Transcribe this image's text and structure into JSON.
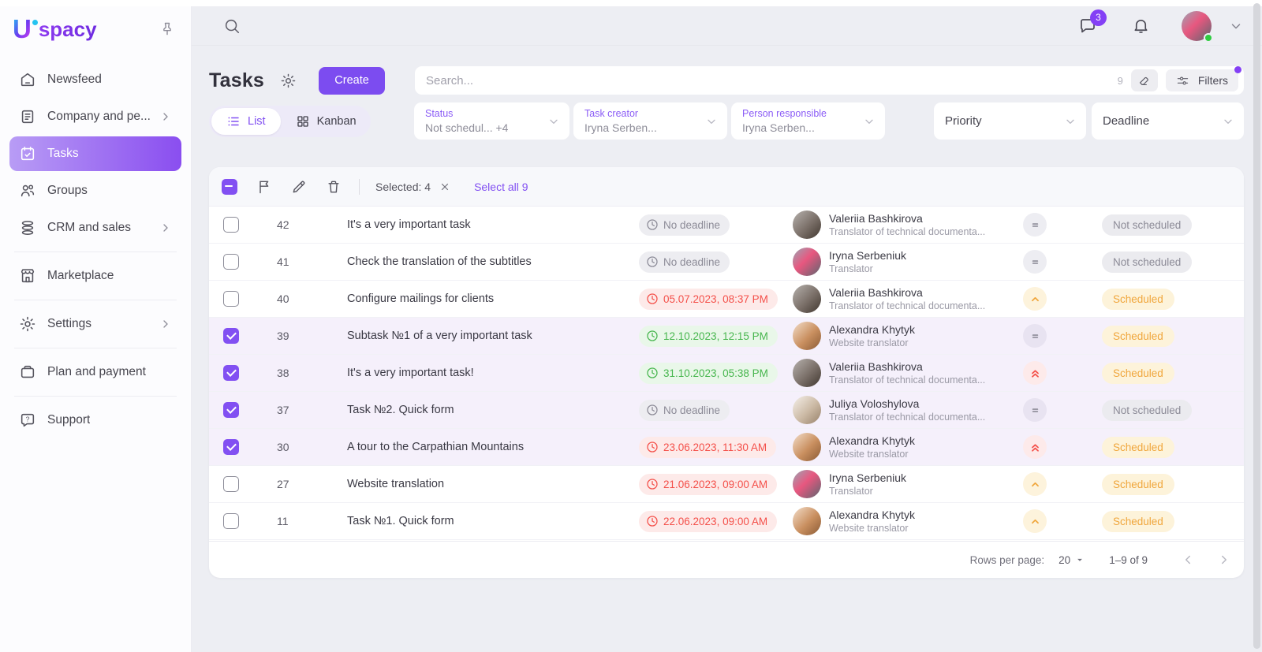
{
  "sidebar": {
    "logo_text": "spacy",
    "items": [
      {
        "label": "Newsfeed",
        "icon": "newsfeed"
      },
      {
        "label": "Company and pe...",
        "icon": "company",
        "chevron": true
      },
      {
        "label": "Tasks",
        "icon": "tasks",
        "active": true
      },
      {
        "label": "Groups",
        "icon": "groups"
      },
      {
        "label": "CRM and sales",
        "icon": "crm",
        "chevron": true,
        "divider_after": true
      },
      {
        "label": "Marketplace",
        "icon": "marketplace",
        "divider_after": true
      },
      {
        "label": "Settings",
        "icon": "settings",
        "chevron": true,
        "divider_after": true
      },
      {
        "label": "Plan and payment",
        "icon": "plan",
        "divider_after": true
      },
      {
        "label": "Support",
        "icon": "support"
      }
    ]
  },
  "topbar": {
    "chat_badge": "3"
  },
  "header": {
    "title": "Tasks",
    "create_label": "Create"
  },
  "search": {
    "placeholder": "Search...",
    "count": "9",
    "filters_label": "Filters"
  },
  "view_toggle": {
    "list_label": "List",
    "kanban_label": "Kanban"
  },
  "filters": [
    {
      "label": "Status",
      "value": "Not schedul...  +4"
    },
    {
      "label": "Task creator",
      "value": "Iryna Serben..."
    },
    {
      "label": "Person responsible",
      "value": "Iryna Serben..."
    },
    {
      "label": "Priority"
    },
    {
      "label": "Deadline"
    }
  ],
  "toolbar": {
    "selected_label": "Selected: 4",
    "select_all_label": "Select all 9"
  },
  "table": {
    "rows": [
      {
        "id": "42",
        "title": "It's a very important task",
        "deadline": {
          "text": "No deadline",
          "tone": "none"
        },
        "person": {
          "name": "Valeriia Bashkirova",
          "role": "Translator of technical documenta...",
          "avatar": "valeriia"
        },
        "priority": "medium",
        "status": {
          "text": "Not scheduled",
          "tone": "gray"
        },
        "selected": false
      },
      {
        "id": "41",
        "title": "Check the translation of the subtitles",
        "deadline": {
          "text": "No deadline",
          "tone": "none"
        },
        "person": {
          "name": "Iryna Serbeniuk",
          "role": "Translator",
          "avatar": "iryna"
        },
        "priority": "medium",
        "status": {
          "text": "Not scheduled",
          "tone": "gray"
        },
        "selected": false
      },
      {
        "id": "40",
        "title": "Configure mailings for clients",
        "deadline": {
          "text": "05.07.2023, 08:37 PM",
          "tone": "overdue"
        },
        "person": {
          "name": "Valeriia Bashkirova",
          "role": "Translator of technical documenta...",
          "avatar": "valeriia"
        },
        "priority": "high",
        "status": {
          "text": "Scheduled",
          "tone": "amber"
        },
        "selected": false
      },
      {
        "id": "39",
        "title": "Subtask №1 of a very important task",
        "deadline": {
          "text": "12.10.2023, 12:15 PM",
          "tone": "upcoming"
        },
        "person": {
          "name": "Alexandra Khytyk",
          "role": "Website translator",
          "avatar": "alexandra"
        },
        "priority": "medium",
        "status": {
          "text": "Scheduled",
          "tone": "amber"
        },
        "selected": true
      },
      {
        "id": "38",
        "title": "It's a very important task!",
        "deadline": {
          "text": "31.10.2023, 05:38 PM",
          "tone": "upcoming"
        },
        "person": {
          "name": "Valeriia Bashkirova",
          "role": "Translator of technical documenta...",
          "avatar": "valeriia"
        },
        "priority": "highest",
        "status": {
          "text": "Scheduled",
          "tone": "amber"
        },
        "selected": true
      },
      {
        "id": "37",
        "title": "Task №2. Quick form",
        "deadline": {
          "text": "No deadline",
          "tone": "none"
        },
        "person": {
          "name": "Juliya Voloshylova",
          "role": "Translator of technical documenta...",
          "avatar": "juliya"
        },
        "priority": "medium",
        "status": {
          "text": "Not scheduled",
          "tone": "gray"
        },
        "selected": true
      },
      {
        "id": "30",
        "title": "A tour to the Carpathian Mountains",
        "deadline": {
          "text": "23.06.2023, 11:30 AM",
          "tone": "overdue"
        },
        "person": {
          "name": "Alexandra Khytyk",
          "role": "Website translator",
          "avatar": "alexandra"
        },
        "priority": "highest",
        "status": {
          "text": "Scheduled",
          "tone": "amber"
        },
        "selected": true
      },
      {
        "id": "27",
        "title": "Website translation",
        "deadline": {
          "text": "21.06.2023, 09:00 AM",
          "tone": "overdue"
        },
        "person": {
          "name": "Iryna Serbeniuk",
          "role": "Translator",
          "avatar": "iryna"
        },
        "priority": "high",
        "status": {
          "text": "Scheduled",
          "tone": "amber"
        },
        "selected": false
      },
      {
        "id": "11",
        "title": "Task №1. Quick form",
        "deadline": {
          "text": "22.06.2023, 09:00 AM",
          "tone": "overdue"
        },
        "person": {
          "name": "Alexandra Khytyk",
          "role": "Website translator",
          "avatar": "alexandra"
        },
        "priority": "high",
        "status": {
          "text": "Scheduled",
          "tone": "amber"
        },
        "selected": false
      }
    ]
  },
  "pagination": {
    "rows_per_page_label": "Rows per page:",
    "rows_per_page_value": "20",
    "range_label": "1–9 of 9"
  },
  "colors": {
    "accent": "#7c4cf0",
    "red": "#f4504a",
    "green": "#47b64e",
    "amber": "#f0a63c",
    "selected_row": "#f5f0fb"
  }
}
